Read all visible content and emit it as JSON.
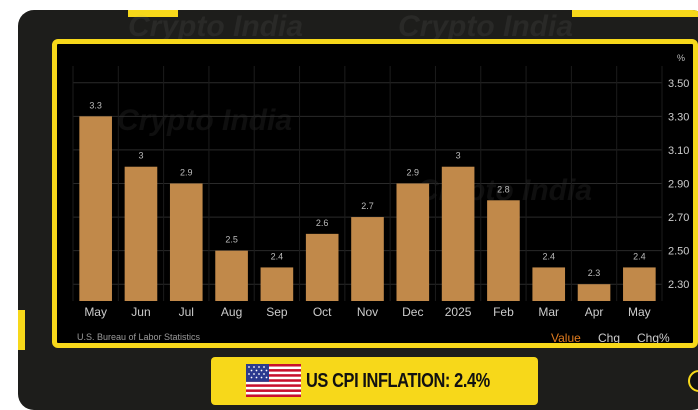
{
  "watermark": "Crypto India",
  "banner": {
    "title": "US CPI INFLATION: 2.4%"
  },
  "source": "U.S. Bureau of Labor Statistics",
  "tabs": [
    {
      "label": "Value",
      "active": true
    },
    {
      "label": "Chg",
      "active": false
    },
    {
      "label": "Chg%",
      "active": false
    }
  ],
  "colors": {
    "accent": "#f7d81a",
    "bar": "#c1894a",
    "active_tab": "#e07b1e"
  },
  "chart_data": {
    "type": "bar",
    "categories": [
      "May",
      "Jun",
      "Jul",
      "Aug",
      "Sep",
      "Oct",
      "Nov",
      "Dec",
      "2025",
      "Feb",
      "Mar",
      "Apr",
      "May"
    ],
    "values": [
      3.3,
      3.0,
      2.9,
      2.5,
      2.4,
      2.6,
      2.7,
      2.9,
      3.0,
      2.8,
      2.4,
      2.3,
      2.4
    ],
    "labels": [
      "3.3",
      "3",
      "2.9",
      "2.5",
      "2.4",
      "2.6",
      "2.7",
      "2.9",
      "3",
      "2.8",
      "2.4",
      "2.3",
      "2.4"
    ],
    "yticks": [
      "3.50",
      "3.30",
      "3.10",
      "2.90",
      "2.70",
      "2.50",
      "2.30"
    ],
    "ylabel": "%",
    "ylim": [
      2.2,
      3.6
    ],
    "grid": true,
    "axis_side": "right"
  }
}
